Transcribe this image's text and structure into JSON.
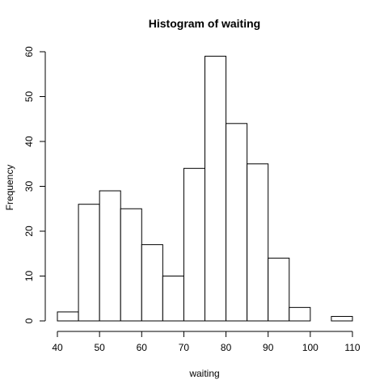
{
  "chart_data": {
    "type": "bar",
    "title": "Histogram of waiting",
    "xlabel": "waiting",
    "ylabel": "Frequency",
    "bins": [
      {
        "from": 40,
        "to": 45,
        "count": 2
      },
      {
        "from": 45,
        "to": 50,
        "count": 26
      },
      {
        "from": 50,
        "to": 55,
        "count": 29
      },
      {
        "from": 55,
        "to": 60,
        "count": 25
      },
      {
        "from": 60,
        "to": 65,
        "count": 17
      },
      {
        "from": 65,
        "to": 70,
        "count": 10
      },
      {
        "from": 70,
        "to": 75,
        "count": 34
      },
      {
        "from": 75,
        "to": 80,
        "count": 59
      },
      {
        "from": 80,
        "to": 85,
        "count": 44
      },
      {
        "from": 85,
        "to": 90,
        "count": 35
      },
      {
        "from": 90,
        "to": 95,
        "count": 14
      },
      {
        "from": 95,
        "to": 100,
        "count": 3
      },
      {
        "from": 100,
        "to": 105,
        "count": 0
      },
      {
        "from": 105,
        "to": 110,
        "count": 1
      }
    ],
    "xlim": [
      40,
      110
    ],
    "ylim": [
      0,
      60
    ],
    "x_ticks": [
      "40",
      "50",
      "60",
      "70",
      "80",
      "90",
      "100",
      "110"
    ],
    "y_ticks": [
      "0",
      "10",
      "20",
      "30",
      "40",
      "50",
      "60"
    ],
    "grid": false,
    "bar_fill": "#ffffff",
    "bar_stroke": "#000000"
  }
}
